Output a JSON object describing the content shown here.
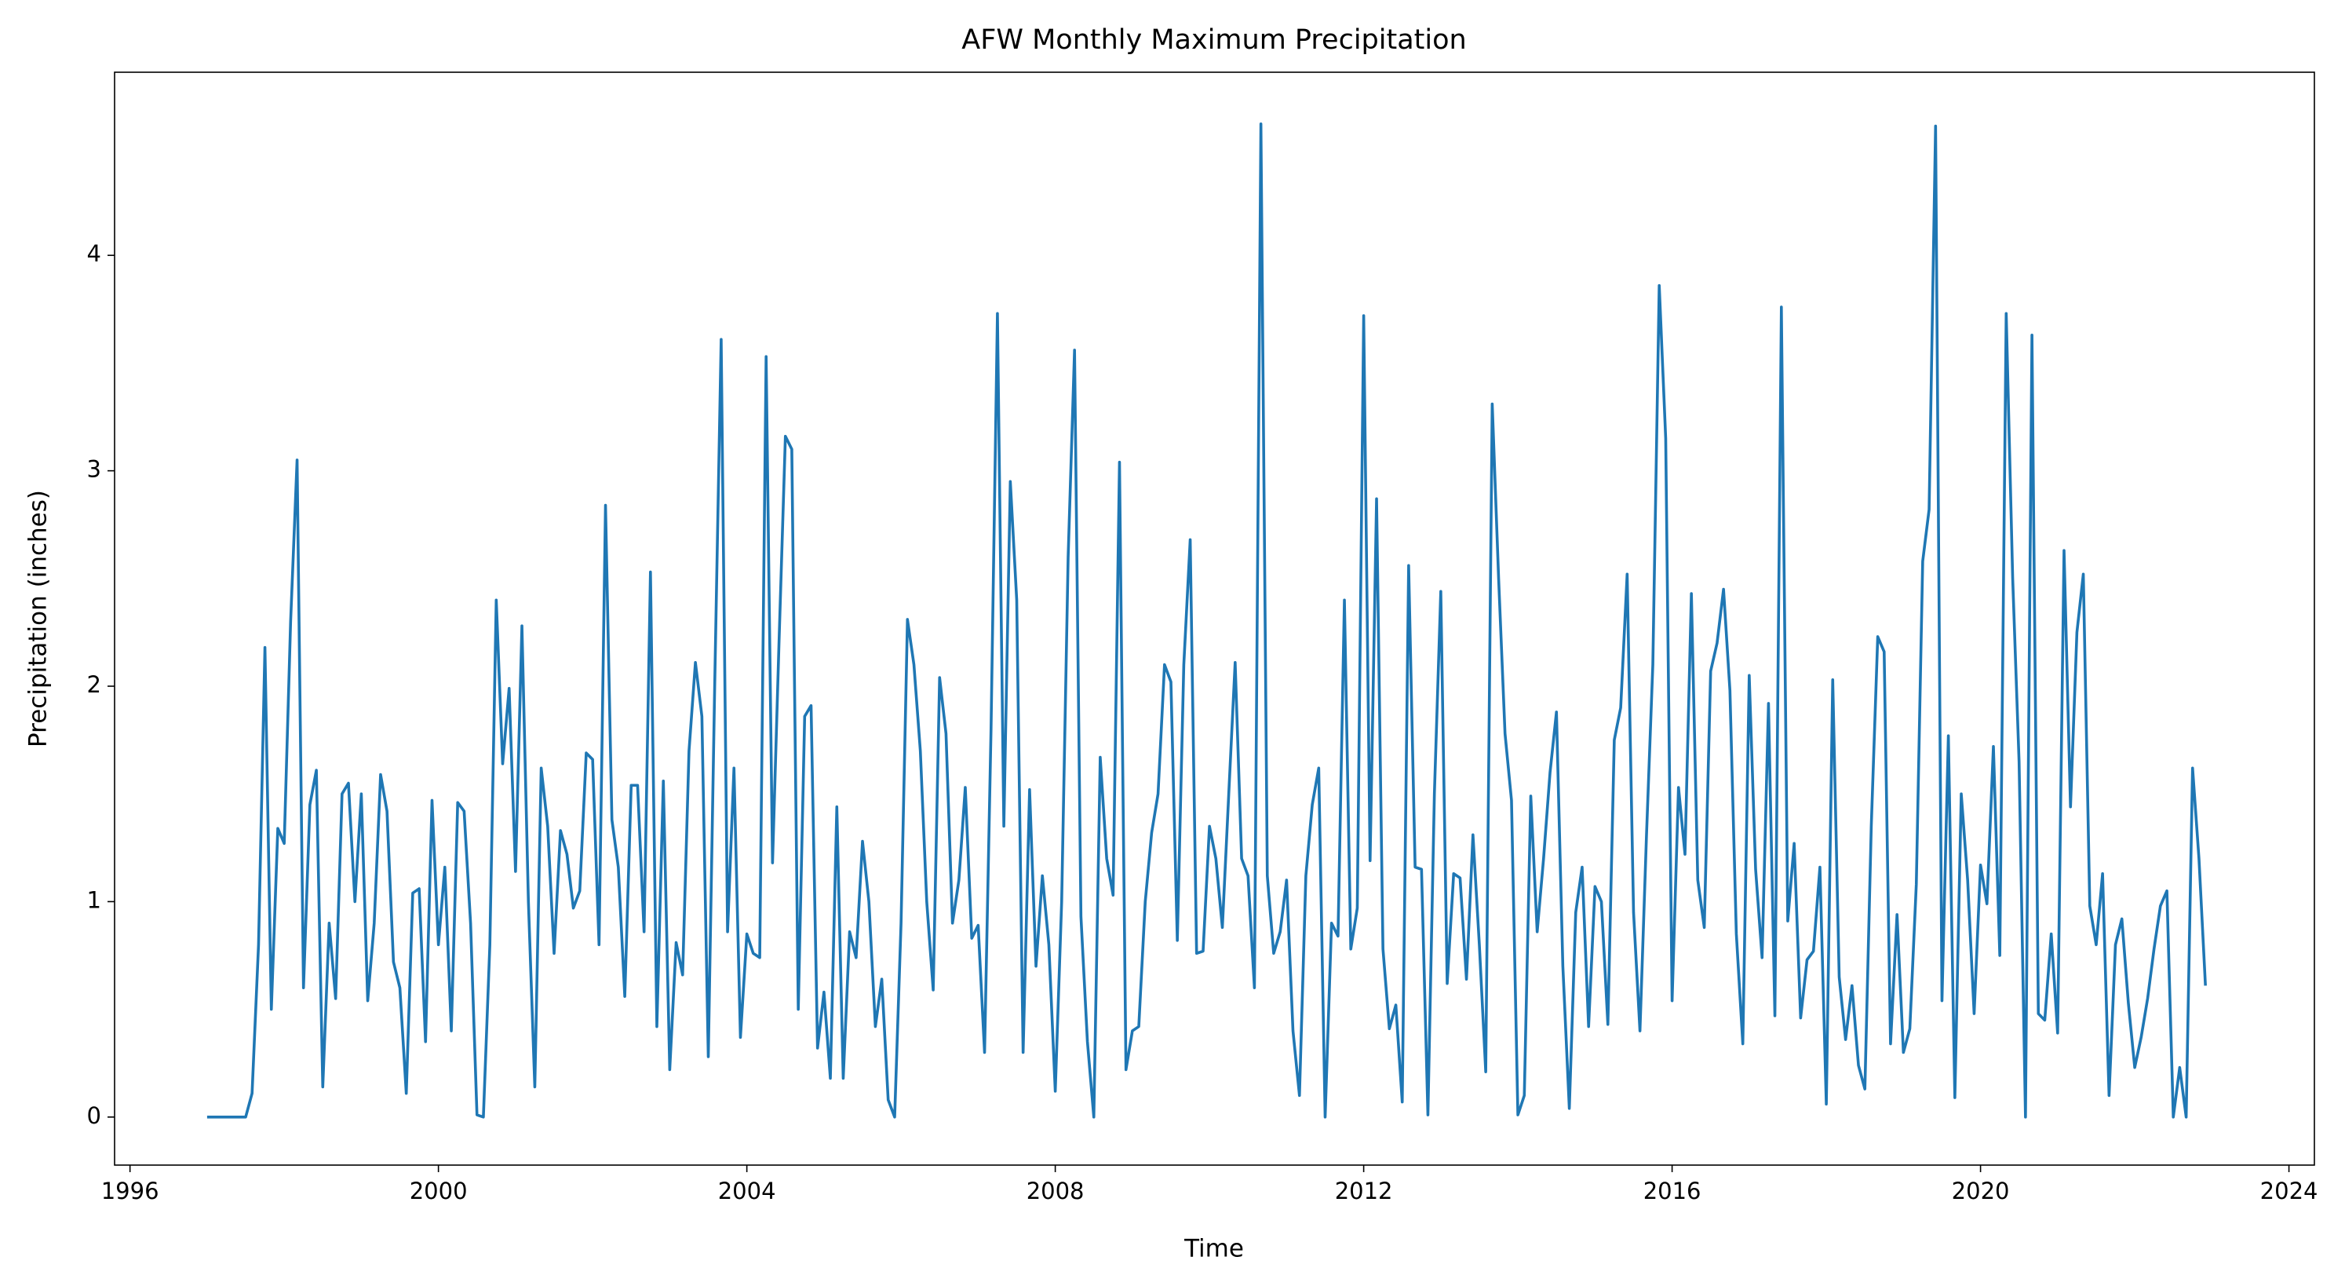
{
  "chart_data": {
    "type": "line",
    "title": "AFW Monthly Maximum Precipitation",
    "x_label": "Time",
    "y_label": "Precipitation (inches)",
    "xlim": [
      1995.8,
      2024.33
    ],
    "ylim": [
      -0.223,
      4.85
    ],
    "xticks": [
      1996,
      2000,
      2004,
      2008,
      2012,
      2016,
      2020,
      2024
    ],
    "yticks": [
      0,
      1,
      2,
      3,
      4
    ],
    "grid": false,
    "series": [
      {
        "name": "AFW",
        "color": "#1f77b4",
        "x": [
          1997,
          1997.083,
          1997.167,
          1997.25,
          1997.333,
          1997.417,
          1997.5,
          1997.583,
          1997.667,
          1997.75,
          1997.833,
          1997.917,
          1998,
          1998.083,
          1998.167,
          1998.25,
          1998.333,
          1998.417,
          1998.5,
          1998.583,
          1998.667,
          1998.75,
          1998.833,
          1998.917,
          1999,
          1999.083,
          1999.167,
          1999.25,
          1999.333,
          1999.417,
          1999.5,
          1999.583,
          1999.667,
          1999.75,
          1999.833,
          1999.917,
          2000,
          2000.083,
          2000.167,
          2000.25,
          2000.333,
          2000.417,
          2000.5,
          2000.583,
          2000.667,
          2000.75,
          2000.833,
          2000.917,
          2001,
          2001.083,
          2001.167,
          2001.25,
          2001.333,
          2001.417,
          2001.5,
          2001.583,
          2001.667,
          2001.75,
          2001.833,
          2001.917,
          2002,
          2002.083,
          2002.167,
          2002.25,
          2002.333,
          2002.417,
          2002.5,
          2002.583,
          2002.667,
          2002.75,
          2002.833,
          2002.917,
          2003,
          2003.083,
          2003.167,
          2003.25,
          2003.333,
          2003.417,
          2003.5,
          2003.583,
          2003.667,
          2003.75,
          2003.833,
          2003.917,
          2004,
          2004.083,
          2004.167,
          2004.25,
          2004.333,
          2004.417,
          2004.5,
          2004.583,
          2004.667,
          2004.75,
          2004.833,
          2004.917,
          2005,
          2005.083,
          2005.167,
          2005.25,
          2005.333,
          2005.417,
          2005.5,
          2005.583,
          2005.667,
          2005.75,
          2005.833,
          2005.917,
          2006,
          2006.083,
          2006.167,
          2006.25,
          2006.333,
          2006.417,
          2006.5,
          2006.583,
          2006.667,
          2006.75,
          2006.833,
          2006.917,
          2007,
          2007.083,
          2007.167,
          2007.25,
          2007.333,
          2007.417,
          2007.5,
          2007.583,
          2007.667,
          2007.75,
          2007.833,
          2007.917,
          2008,
          2008.083,
          2008.167,
          2008.25,
          2008.333,
          2008.417,
          2008.5,
          2008.583,
          2008.667,
          2008.75,
          2008.833,
          2008.917,
          2009,
          2009.083,
          2009.167,
          2009.25,
          2009.333,
          2009.417,
          2009.5,
          2009.583,
          2009.667,
          2009.75,
          2009.833,
          2009.917,
          2010,
          2010.083,
          2010.167,
          2010.25,
          2010.333,
          2010.417,
          2010.5,
          2010.583,
          2010.667,
          2010.75,
          2010.833,
          2010.917,
          2011,
          2011.083,
          2011.167,
          2011.25,
          2011.333,
          2011.417,
          2011.5,
          2011.583,
          2011.667,
          2011.75,
          2011.833,
          2011.917,
          2012,
          2012.083,
          2012.167,
          2012.25,
          2012.333,
          2012.417,
          2012.5,
          2012.583,
          2012.667,
          2012.75,
          2012.833,
          2012.917,
          2013,
          2013.083,
          2013.167,
          2013.25,
          2013.333,
          2013.417,
          2013.5,
          2013.583,
          2013.667,
          2013.75,
          2013.833,
          2013.917,
          2014,
          2014.083,
          2014.167,
          2014.25,
          2014.333,
          2014.417,
          2014.5,
          2014.583,
          2014.667,
          2014.75,
          2014.833,
          2014.917,
          2015,
          2015.083,
          2015.167,
          2015.25,
          2015.333,
          2015.417,
          2015.5,
          2015.583,
          2015.667,
          2015.75,
          2015.833,
          2015.917,
          2016,
          2016.083,
          2016.167,
          2016.25,
          2016.333,
          2016.417,
          2016.5,
          2016.583,
          2016.667,
          2016.75,
          2016.833,
          2016.917,
          2017,
          2017.083,
          2017.167,
          2017.25,
          2017.333,
          2017.417,
          2017.5,
          2017.583,
          2017.667,
          2017.75,
          2017.833,
          2017.917,
          2018,
          2018.083,
          2018.167,
          2018.25,
          2018.333,
          2018.417,
          2018.5,
          2018.583,
          2018.667,
          2018.75,
          2018.833,
          2018.917,
          2019,
          2019.083,
          2019.167,
          2019.25,
          2019.333,
          2019.417,
          2019.5,
          2019.583,
          2019.667,
          2019.75,
          2019.833,
          2019.917,
          2020,
          2020.083,
          2020.167,
          2020.25,
          2020.333,
          2020.417,
          2020.5,
          2020.583,
          2020.667,
          2020.75,
          2020.833,
          2020.917,
          2021,
          2021.083,
          2021.167,
          2021.25,
          2021.333,
          2021.417,
          2021.5,
          2021.583,
          2021.667,
          2021.75,
          2021.833,
          2021.917,
          2022,
          2022.083,
          2022.167,
          2022.25,
          2022.333,
          2022.417,
          2022.5,
          2022.583,
          2022.667,
          2022.75,
          2022.833,
          2022.917
        ],
        "values": [
          0,
          0,
          0,
          0,
          0,
          0,
          0,
          0.11,
          0.8,
          2.18,
          0.5,
          1.34,
          1.27,
          2.3,
          3.05,
          0.6,
          1.45,
          1.61,
          0.14,
          0.9,
          0.55,
          1.5,
          1.55,
          1.0,
          1.5,
          0.54,
          0.9,
          1.59,
          1.42,
          0.72,
          0.6,
          0.11,
          1.04,
          1.06,
          0.35,
          1.47,
          0.8,
          1.16,
          0.4,
          1.46,
          1.42,
          0.9,
          0.01,
          0.0,
          0.8,
          2.4,
          1.64,
          1.99,
          1.14,
          2.28,
          1.0,
          0.14,
          1.62,
          1.35,
          0.76,
          1.33,
          1.22,
          0.97,
          1.05,
          1.69,
          1.66,
          0.8,
          2.84,
          1.38,
          1.16,
          0.56,
          1.54,
          1.54,
          0.86,
          2.53,
          0.42,
          1.56,
          0.22,
          0.81,
          0.66,
          1.7,
          2.11,
          1.86,
          0.28,
          2.0,
          3.61,
          0.86,
          1.62,
          0.37,
          0.85,
          0.76,
          0.74,
          3.53,
          1.18,
          2.2,
          3.16,
          3.1,
          0.5,
          1.86,
          1.91,
          0.32,
          0.58,
          0.18,
          1.44,
          0.18,
          0.86,
          0.74,
          1.28,
          1.0,
          0.42,
          0.64,
          0.08,
          0.0,
          0.9,
          2.31,
          2.1,
          1.7,
          1.0,
          0.59,
          2.04,
          1.78,
          0.9,
          1.1,
          1.53,
          0.83,
          0.89,
          0.3,
          1.8,
          3.73,
          1.35,
          2.95,
          2.4,
          0.3,
          1.52,
          0.7,
          1.12,
          0.8,
          0.12,
          1.0,
          2.6,
          3.56,
          0.93,
          0.35,
          0.0,
          1.67,
          1.2,
          1.03,
          3.04,
          0.22,
          0.4,
          0.42,
          1.0,
          1.32,
          1.5,
          2.1,
          2.02,
          0.82,
          2.1,
          2.68,
          0.76,
          0.77,
          1.35,
          1.2,
          0.88,
          1.5,
          2.11,
          1.2,
          1.12,
          0.6,
          4.61,
          1.12,
          0.76,
          0.86,
          1.1,
          0.4,
          0.1,
          1.12,
          1.45,
          1.62,
          0.0,
          0.9,
          0.84,
          2.4,
          0.78,
          0.97,
          3.72,
          1.19,
          2.87,
          0.78,
          0.41,
          0.52,
          0.07,
          2.56,
          1.16,
          1.15,
          0.01,
          1.5,
          2.44,
          0.62,
          1.13,
          1.11,
          0.64,
          1.31,
          0.8,
          0.21,
          3.31,
          2.5,
          1.78,
          1.47,
          0.01,
          0.1,
          1.49,
          0.86,
          1.2,
          1.6,
          1.88,
          0.7,
          0.04,
          0.95,
          1.16,
          0.42,
          1.07,
          1.0,
          0.43,
          1.75,
          1.9,
          2.52,
          0.95,
          0.4,
          1.3,
          2.1,
          3.86,
          3.15,
          0.54,
          1.53,
          1.22,
          2.43,
          1.1,
          0.88,
          2.07,
          2.2,
          2.45,
          1.98,
          0.85,
          0.34,
          2.05,
          1.15,
          0.74,
          1.92,
          0.47,
          3.76,
          0.91,
          1.27,
          0.46,
          0.73,
          0.77,
          1.16,
          0.06,
          2.03,
          0.65,
          0.36,
          0.61,
          0.24,
          0.13,
          1.35,
          2.23,
          2.16,
          0.34,
          0.94,
          0.3,
          0.41,
          1.08,
          2.58,
          2.82,
          4.6,
          0.54,
          1.77,
          0.09,
          1.5,
          1.1,
          0.48,
          1.17,
          0.99,
          1.72,
          0.75,
          3.73,
          2.5,
          1.65,
          0.0,
          3.63,
          0.48,
          0.45,
          0.85,
          0.39,
          2.63,
          1.44,
          2.25,
          2.52,
          0.98,
          0.8,
          1.13,
          0.1,
          0.8,
          0.92,
          0.53,
          0.23,
          0.37,
          0.55,
          0.78,
          0.98,
          1.05,
          0.0,
          0.23,
          0.0,
          1.62,
          1.2,
          0.61
        ]
      }
    ]
  }
}
